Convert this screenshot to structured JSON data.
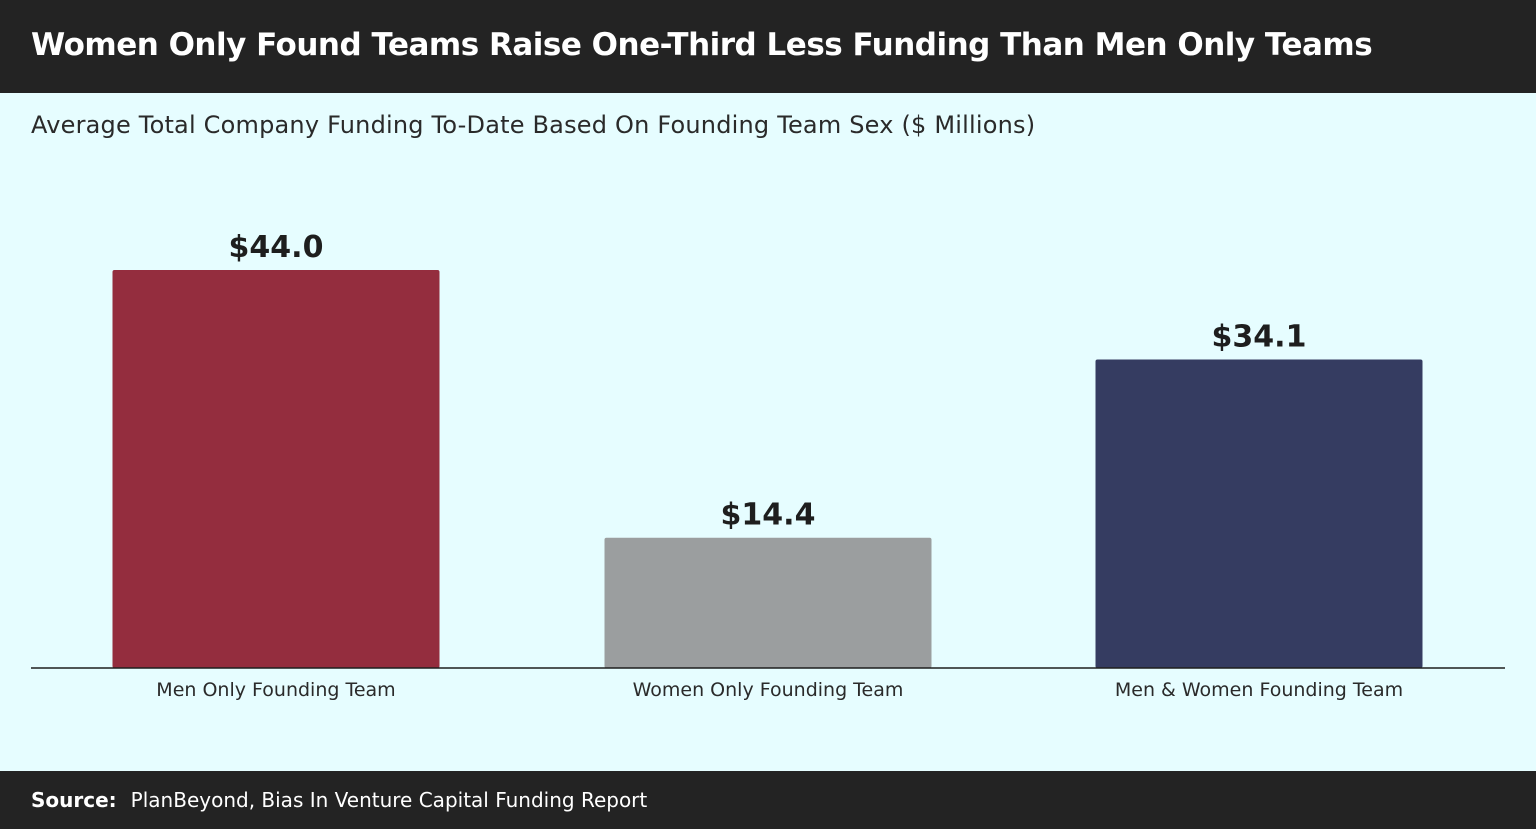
{
  "header": {
    "title": "Women Only Found Teams Raise One-Third Less Funding Than Men Only Teams"
  },
  "subtitle": "Average Total Company Funding To-Date Based On Founding Team Sex ($ Millions)",
  "footer": {
    "source_label": "Source:",
    "source_text": "PlanBeyond, Bias In Venture Capital Funding Report"
  },
  "colors": {
    "header_bg": "#232323",
    "page_bg": "#e6fdff",
    "bars": [
      "#942d3e",
      "#9b9e9f",
      "#353c61"
    ]
  },
  "chart_data": {
    "type": "bar",
    "title": "Women Only Found Teams Raise One-Third Less Funding Than Men Only Teams",
    "subtitle": "Average Total Company Funding To-Date Based On Founding Team Sex ($ Millions)",
    "categories": [
      "Men Only Founding Team",
      "Women Only Founding Team",
      "Men & Women Founding Team"
    ],
    "values": [
      44.0,
      14.4,
      34.1
    ],
    "data_labels": [
      "$44.0",
      "$14.4",
      "$34.1"
    ],
    "xlabel": "",
    "ylabel": "",
    "ylim": [
      0,
      44.0
    ],
    "grid": false,
    "legend": "none"
  }
}
